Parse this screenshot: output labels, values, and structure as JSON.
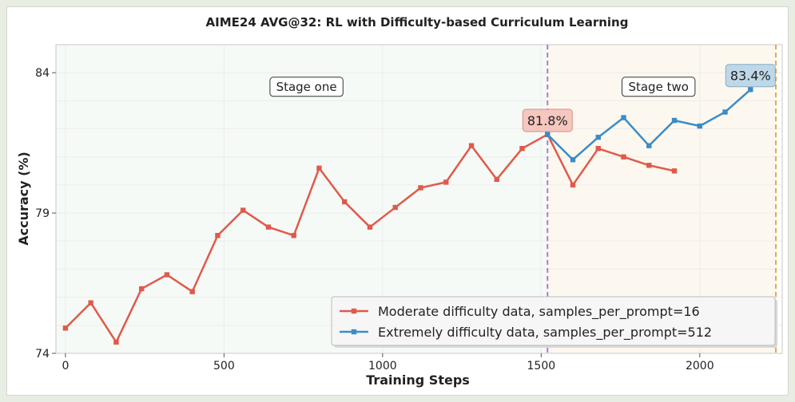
{
  "chart_data": {
    "type": "line",
    "title": "AIME24 AVG@32: RL with Difficulty-based Curriculum Learning",
    "xlabel": "Training Steps",
    "ylabel": "Accuracy (%)",
    "xlim": [
      -30,
      2260
    ],
    "ylim": [
      74,
      85
    ],
    "xticks": [
      0,
      500,
      1000,
      1500,
      2000
    ],
    "xtick_labels": [
      "0",
      "500",
      "1000",
      "1500",
      "2000"
    ],
    "yticks": [
      74,
      79,
      84
    ],
    "ytick_labels": [
      "74",
      "79",
      "84"
    ],
    "grid": true,
    "legend_position": "lower-right",
    "series": [
      {
        "name": "Moderate difficulty data, samples_per_prompt=16",
        "color": "#e05a4b",
        "x": [
          0,
          80,
          160,
          240,
          320,
          400,
          480,
          560,
          640,
          720,
          800,
          880,
          960,
          1040,
          1120,
          1200,
          1280,
          1360,
          1440,
          1520,
          1600,
          1680,
          1760,
          1840,
          1920
        ],
        "y": [
          74.9,
          75.8,
          74.4,
          76.3,
          76.8,
          76.2,
          78.2,
          79.1,
          78.5,
          78.2,
          80.6,
          79.4,
          78.5,
          79.2,
          79.9,
          80.1,
          81.4,
          80.2,
          81.3,
          81.8,
          80.0,
          81.3,
          81.0,
          80.7,
          80.5
        ]
      },
      {
        "name": "Extremely difficulty data, samples_per_prompt=512",
        "color": "#3a8cc7",
        "x": [
          1520,
          1600,
          1680,
          1760,
          1840,
          1920,
          2000,
          2080,
          2160
        ],
        "y": [
          81.8,
          80.9,
          81.7,
          82.4,
          81.4,
          82.3,
          82.1,
          82.6,
          83.4
        ]
      }
    ],
    "vertical_lines": [
      {
        "x": 1520,
        "color": "#b07cc6"
      },
      {
        "x": 2240,
        "color": "#e0a84a"
      }
    ],
    "stage_regions": [
      {
        "label": "Stage one",
        "x_start": -30,
        "x_end": 1520,
        "fill": "#f6faf7",
        "label_x": 760,
        "label_y": 83.5
      },
      {
        "label": "Stage two",
        "x_start": 1520,
        "x_end": 2240,
        "fill": "#fdf8ef",
        "label_x": 1870,
        "label_y": 83.5
      }
    ],
    "annotations": [
      {
        "text": "81.8%",
        "x": 1520,
        "y": 82.3,
        "fill": "#f6c5bd",
        "stroke": "#d98a7e"
      },
      {
        "text": "83.4%",
        "x": 2160,
        "y": 83.9,
        "fill": "#bcd7e8",
        "stroke": "#7fa9c6"
      }
    ]
  }
}
